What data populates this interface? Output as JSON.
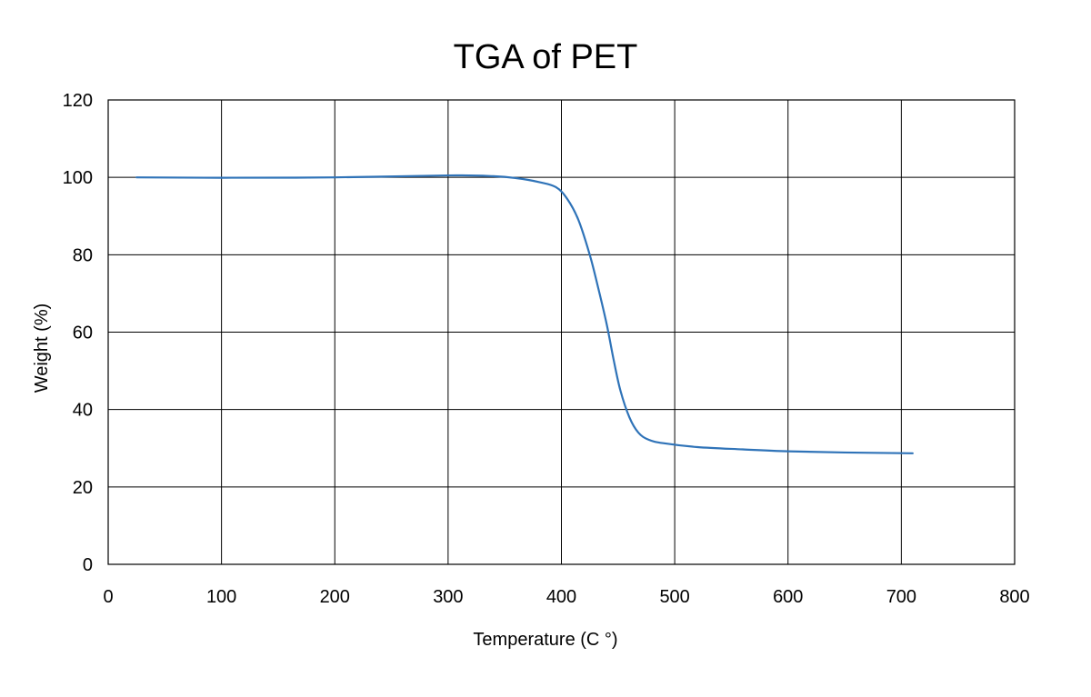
{
  "chart_data": {
    "type": "line",
    "title": "TGA of PET",
    "xlabel": "Temperature (C °)",
    "ylabel": "Weight (%)",
    "xlim": [
      0,
      800
    ],
    "ylim": [
      0,
      120
    ],
    "xticks": [
      0,
      100,
      200,
      300,
      400,
      500,
      600,
      700,
      800
    ],
    "yticks": [
      0,
      20,
      40,
      60,
      80,
      100,
      120
    ],
    "grid": true,
    "legend": "none",
    "series": [
      {
        "color": "#2f73b8",
        "x": [
          25,
          100,
          200,
          300,
          340,
          360,
          380,
          395,
          405,
          415,
          425,
          432,
          440,
          446,
          452,
          460,
          468,
          477,
          490,
          520,
          560,
          600,
          650,
          710
        ],
        "y": [
          100,
          99.9,
          100,
          100.5,
          100.3,
          99.8,
          98.8,
          97.5,
          94.5,
          89,
          80,
          72,
          62,
          53,
          45,
          38,
          34,
          32.2,
          31.3,
          30.3,
          29.7,
          29.2,
          28.9,
          28.7
        ]
      }
    ]
  }
}
